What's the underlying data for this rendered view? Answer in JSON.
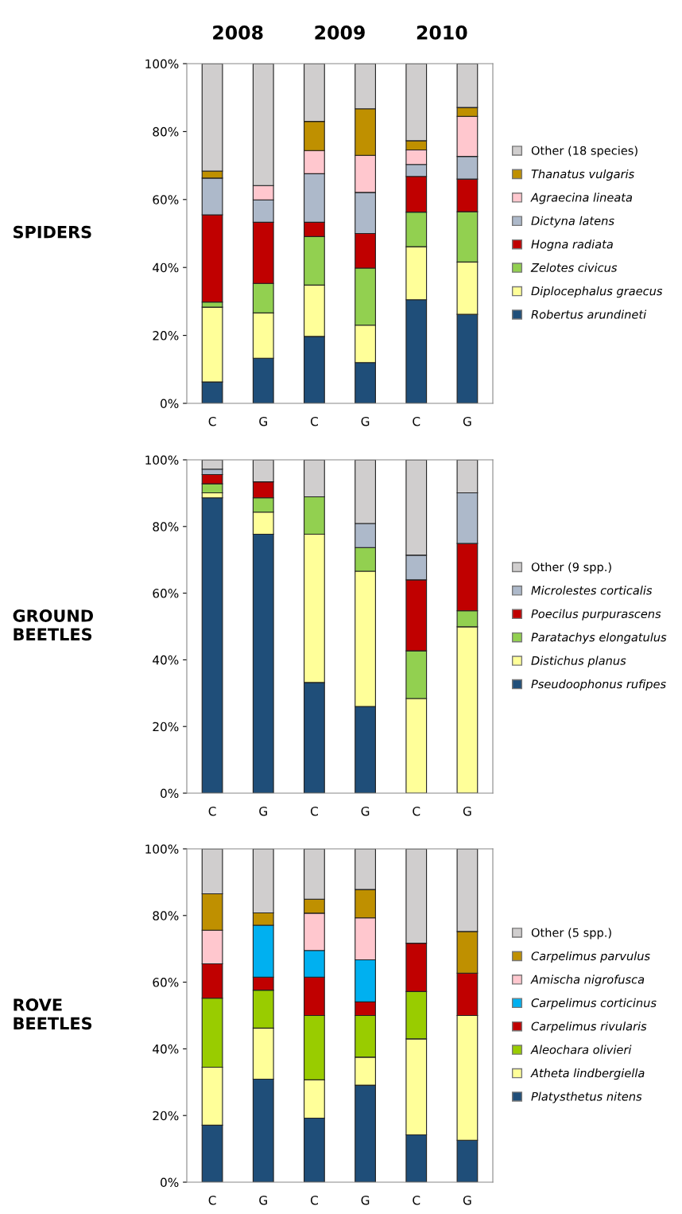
{
  "chart_data": [
    {
      "type": "bar",
      "stacked": true,
      "title": "SPIDERS",
      "annotations": [
        "2008",
        "2009",
        "2010"
      ],
      "categories": [
        "C",
        "G",
        "C",
        "G",
        "C",
        "G"
      ],
      "ylim": [
        0,
        100
      ],
      "yticks": [
        {
          "value": 0,
          "label": "0%"
        },
        {
          "value": 20,
          "label": "20%"
        },
        {
          "value": 40,
          "label": "40%"
        },
        {
          "value": 60,
          "label": "60%"
        },
        {
          "value": 80,
          "label": "80%"
        },
        {
          "value": 100,
          "label": "100%"
        }
      ],
      "grid": false,
      "legend": "right",
      "series": [
        {
          "name": "Robertus arundineti",
          "color": "#1f4e79",
          "values": [
            6.3,
            13.3,
            19.7,
            12.0,
            30.5,
            26.2
          ]
        },
        {
          "name": "Diplocephalus graecus",
          "color": "#ffff99",
          "values": [
            22.0,
            13.3,
            15.1,
            11.0,
            15.6,
            15.4
          ]
        },
        {
          "name": "Zelotes civicus",
          "color": "#92d050",
          "values": [
            1.5,
            8.7,
            14.3,
            16.8,
            10.2,
            14.8
          ]
        },
        {
          "name": "Hogna radiata",
          "color": "#c00000",
          "values": [
            25.7,
            18.0,
            4.2,
            10.2,
            10.5,
            9.6
          ]
        },
        {
          "name": "Dictyna latens",
          "color": "#adb9ca",
          "values": [
            10.8,
            6.6,
            14.3,
            12.1,
            3.5,
            6.7
          ]
        },
        {
          "name": "Agraecina lineata",
          "color": "#ffc7ce",
          "values": [
            0,
            4.2,
            6.8,
            10.9,
            4.3,
            11.8
          ]
        },
        {
          "name": "Thanatus vulgaris",
          "color": "#bf9000",
          "values": [
            2.1,
            0,
            8.6,
            13.7,
            2.7,
            2.6
          ]
        },
        {
          "name": "Other (18 species)",
          "color": "#d0cece",
          "values": [
            31.6,
            35.9,
            17.0,
            13.3,
            22.7,
            12.9
          ]
        }
      ]
    },
    {
      "type": "bar",
      "stacked": true,
      "title": "GROUND\nBEETLES",
      "categories": [
        "C",
        "G",
        "C",
        "G",
        "C",
        "G"
      ],
      "ylim": [
        0,
        100
      ],
      "yticks": [
        {
          "value": 0,
          "label": "0%"
        },
        {
          "value": 20,
          "label": "20%"
        },
        {
          "value": 40,
          "label": "40%"
        },
        {
          "value": 60,
          "label": "60%"
        },
        {
          "value": 80,
          "label": "80%"
        },
        {
          "value": 100,
          "label": "100%"
        }
      ],
      "grid": false,
      "legend": "right",
      "series": [
        {
          "name": "Pseudoophonus rufipes",
          "color": "#1f4e79",
          "values": [
            88.6,
            77.7,
            33.2,
            26.0,
            0,
            0
          ]
        },
        {
          "name": "Distichus planus",
          "color": "#ffff99",
          "values": [
            1.5,
            6.6,
            44.5,
            40.6,
            28.4,
            49.9
          ]
        },
        {
          "name": "Paratachys elongatulus",
          "color": "#92d050",
          "values": [
            2.7,
            4.3,
            11.2,
            7.1,
            14.3,
            4.8
          ]
        },
        {
          "name": "Poecilus purpurascens",
          "color": "#c00000",
          "values": [
            2.8,
            4.8,
            0,
            0,
            21.3,
            20.2
          ]
        },
        {
          "name": "Microlestes corticalis",
          "color": "#adb9ca",
          "values": [
            1.6,
            0,
            0,
            7.2,
            7.4,
            15.2
          ]
        },
        {
          "name": "Other (9 spp.)",
          "color": "#d0cece",
          "values": [
            2.8,
            6.6,
            11.1,
            19.1,
            28.6,
            9.9
          ]
        }
      ]
    },
    {
      "type": "bar",
      "stacked": true,
      "title": "ROVE\nBEETLES",
      "categories": [
        "C",
        "G",
        "C",
        "G",
        "C",
        "G"
      ],
      "ylim": [
        0,
        100
      ],
      "yticks": [
        {
          "value": 0,
          "label": "0%"
        },
        {
          "value": 20,
          "label": "20%"
        },
        {
          "value": 40,
          "label": "40%"
        },
        {
          "value": 60,
          "label": "60%"
        },
        {
          "value": 80,
          "label": "80%"
        },
        {
          "value": 100,
          "label": "100%"
        }
      ],
      "grid": false,
      "legend": "right",
      "series": [
        {
          "name": "Platysthetus nitens",
          "color": "#1f4e79",
          "values": [
            17.1,
            30.9,
            19.2,
            29.1,
            14.2,
            12.6
          ]
        },
        {
          "name": "Atheta lindbergiella",
          "color": "#ffff99",
          "values": [
            17.4,
            15.3,
            11.5,
            8.4,
            28.8,
            37.4
          ]
        },
        {
          "name": "Aleochara olivieri",
          "color": "#99cc00",
          "values": [
            20.7,
            11.4,
            19.3,
            12.5,
            14.2,
            0
          ]
        },
        {
          "name": "Carpelimus rivularis",
          "color": "#c00000",
          "values": [
            10.3,
            3.9,
            11.5,
            4.1,
            14.5,
            12.7
          ]
        },
        {
          "name": "Carpelimus corticinus",
          "color": "#00b0f0",
          "values": [
            0,
            15.6,
            8.0,
            12.6,
            0,
            0
          ]
        },
        {
          "name": "Amischa nigrofusca",
          "color": "#ffc7ce",
          "values": [
            10.1,
            0,
            11.2,
            12.6,
            0,
            0
          ]
        },
        {
          "name": "Carpelimus parvulus",
          "color": "#bf9000",
          "values": [
            10.9,
            3.7,
            4.2,
            8.5,
            0,
            12.5
          ]
        },
        {
          "name": "Other (5 spp.)",
          "color": "#d0cece",
          "values": [
            13.5,
            19.2,
            15.1,
            12.2,
            28.3,
            24.8
          ]
        }
      ]
    }
  ]
}
